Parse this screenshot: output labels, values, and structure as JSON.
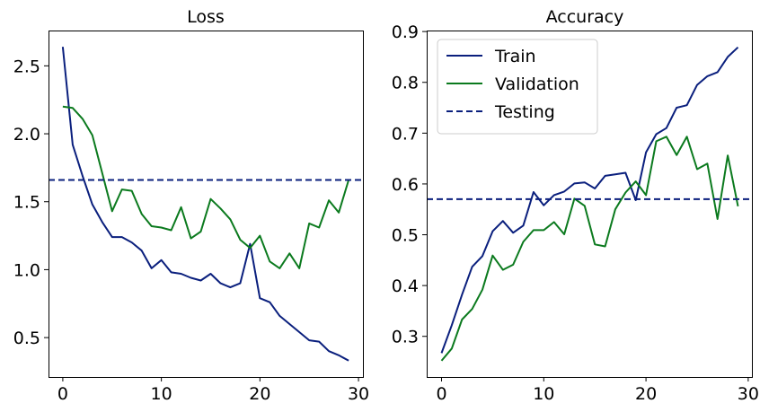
{
  "chart_data": [
    {
      "type": "line",
      "title": "Loss",
      "xlabel": "",
      "ylabel": "",
      "xlim": [
        -1.45,
        30.45
      ],
      "ylim": [
        0.21,
        2.76
      ],
      "xticks": [
        0,
        10,
        20,
        30
      ],
      "xtick_labels": [
        "0",
        "10",
        "20",
        "30"
      ],
      "yticks": [
        0.5,
        1.0,
        1.5,
        2.0,
        2.5
      ],
      "ytick_labels": [
        "0.5",
        "1.0",
        "1.5",
        "2.0",
        "2.5"
      ],
      "grid": false,
      "x": [
        0,
        1,
        2,
        3,
        4,
        5,
        6,
        7,
        8,
        9,
        10,
        11,
        12,
        13,
        14,
        15,
        16,
        17,
        18,
        19,
        20,
        21,
        22,
        23,
        24,
        25,
        26,
        27,
        28,
        29
      ],
      "series": [
        {
          "color": "#0a1f7d",
          "style": "solid",
          "values": [
            2.64,
            1.92,
            1.69,
            1.48,
            1.35,
            1.24,
            1.24,
            1.2,
            1.14,
            1.01,
            1.07,
            0.98,
            0.97,
            0.94,
            0.92,
            0.97,
            0.9,
            0.87,
            0.9,
            1.19,
            0.79,
            0.76,
            0.66,
            0.6,
            0.54,
            0.48,
            0.47,
            0.4,
            0.37,
            0.33
          ]
        },
        {
          "color": "#0b7a1e",
          "style": "solid",
          "values": [
            2.2,
            2.19,
            2.11,
            1.99,
            1.71,
            1.43,
            1.59,
            1.58,
            1.41,
            1.32,
            1.31,
            1.29,
            1.46,
            1.23,
            1.28,
            1.52,
            1.45,
            1.37,
            1.22,
            1.16,
            1.25,
            1.06,
            1.01,
            1.12,
            1.01,
            1.34,
            1.31,
            1.51,
            1.42,
            1.66
          ]
        },
        {
          "color": "#0a1f7d",
          "style": "dashed",
          "hline": 1.66
        }
      ]
    },
    {
      "type": "line",
      "title": "Accuracy",
      "xlabel": "",
      "ylabel": "",
      "xlim": [
        -1.45,
        30.45
      ],
      "ylim": [
        0.22,
        0.902
      ],
      "xticks": [
        0,
        10,
        20,
        30
      ],
      "xtick_labels": [
        "0",
        "10",
        "20",
        "30"
      ],
      "yticks": [
        0.3,
        0.4,
        0.5,
        0.6,
        0.7,
        0.8,
        0.9
      ],
      "ytick_labels": [
        "0.3",
        "0.4",
        "0.5",
        "0.6",
        "0.7",
        "0.8",
        "0.9"
      ],
      "grid": false,
      "legend_position": "top-left",
      "x": [
        0,
        1,
        2,
        3,
        4,
        5,
        6,
        7,
        8,
        9,
        10,
        11,
        12,
        13,
        14,
        15,
        16,
        17,
        18,
        19,
        20,
        21,
        22,
        23,
        24,
        25,
        26,
        27,
        28,
        29
      ],
      "series": [
        {
          "name": "Train",
          "color": "#0a1f7d",
          "style": "solid",
          "values": [
            0.267,
            0.322,
            0.382,
            0.437,
            0.458,
            0.507,
            0.527,
            0.504,
            0.518,
            0.584,
            0.558,
            0.578,
            0.585,
            0.601,
            0.603,
            0.591,
            0.616,
            0.619,
            0.622,
            0.568,
            0.662,
            0.698,
            0.71,
            0.75,
            0.755,
            0.795,
            0.812,
            0.82,
            0.85,
            0.869
          ]
        },
        {
          "name": "Validation",
          "color": "#0b7a1e",
          "style": "solid",
          "values": [
            0.252,
            0.276,
            0.333,
            0.354,
            0.392,
            0.459,
            0.431,
            0.441,
            0.486,
            0.509,
            0.509,
            0.525,
            0.501,
            0.571,
            0.557,
            0.481,
            0.477,
            0.55,
            0.583,
            0.605,
            0.578,
            0.684,
            0.693,
            0.657,
            0.693,
            0.629,
            0.64,
            0.531,
            0.656,
            0.556
          ]
        },
        {
          "name": "Testing",
          "color": "#0a1f7d",
          "style": "dashed",
          "hline": 0.57
        }
      ]
    }
  ]
}
